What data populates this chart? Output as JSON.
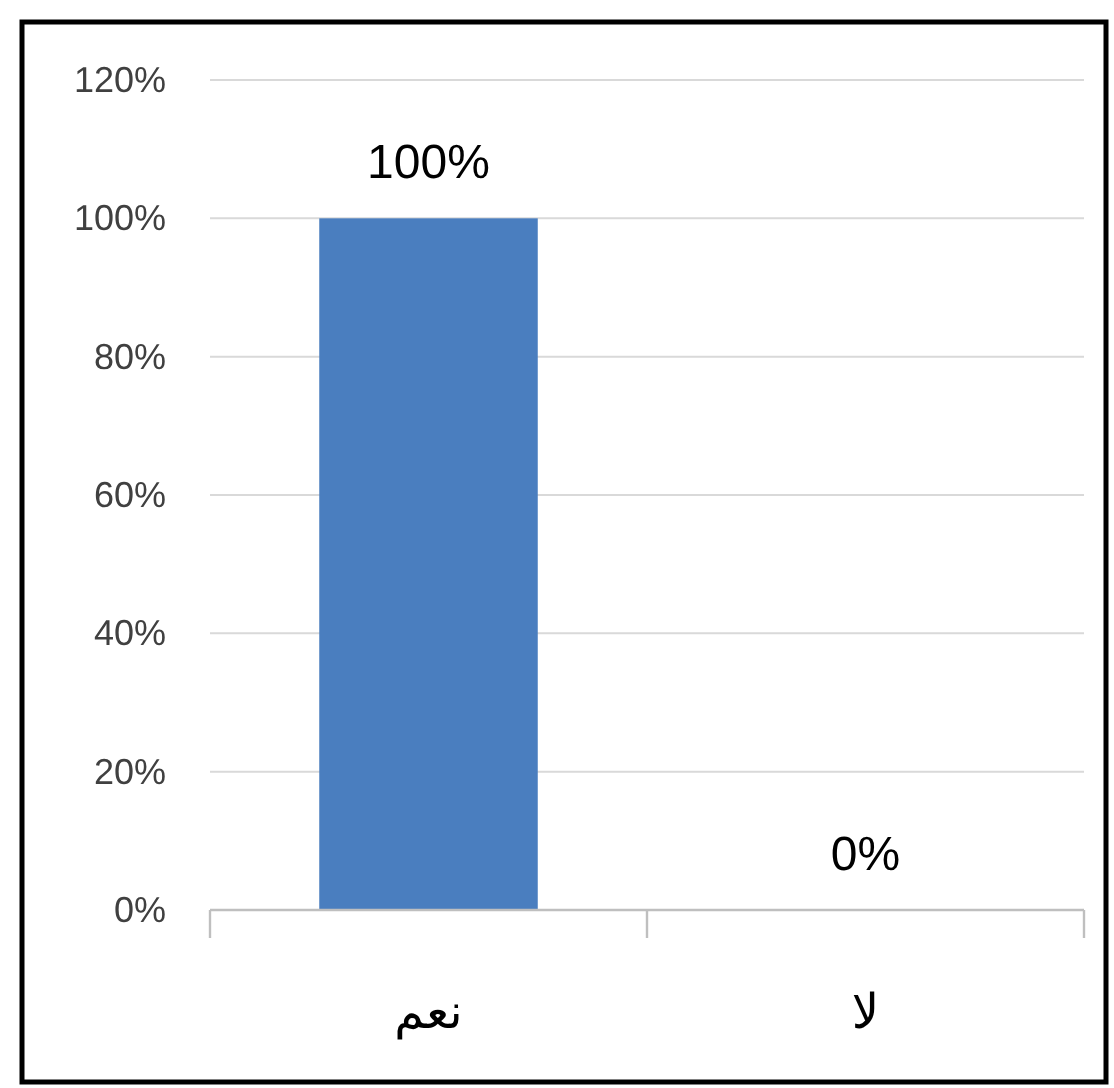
{
  "chart_data": {
    "type": "bar",
    "categories": [
      "نعم",
      "لا"
    ],
    "values": [
      100,
      0
    ],
    "color": "#4a7ebf",
    "ylim": [
      0,
      120
    ],
    "yticks": [
      {
        "value": 0,
        "label": "0%"
      },
      {
        "value": 20,
        "label": "20%"
      },
      {
        "value": 40,
        "label": "40%"
      },
      {
        "value": 60,
        "label": "60%"
      },
      {
        "value": 80,
        "label": "80%"
      },
      {
        "value": 100,
        "label": "100%"
      },
      {
        "value": 120,
        "label": "120%"
      }
    ],
    "grid": "y",
    "value_labels": [
      "100%",
      "0%"
    ]
  }
}
